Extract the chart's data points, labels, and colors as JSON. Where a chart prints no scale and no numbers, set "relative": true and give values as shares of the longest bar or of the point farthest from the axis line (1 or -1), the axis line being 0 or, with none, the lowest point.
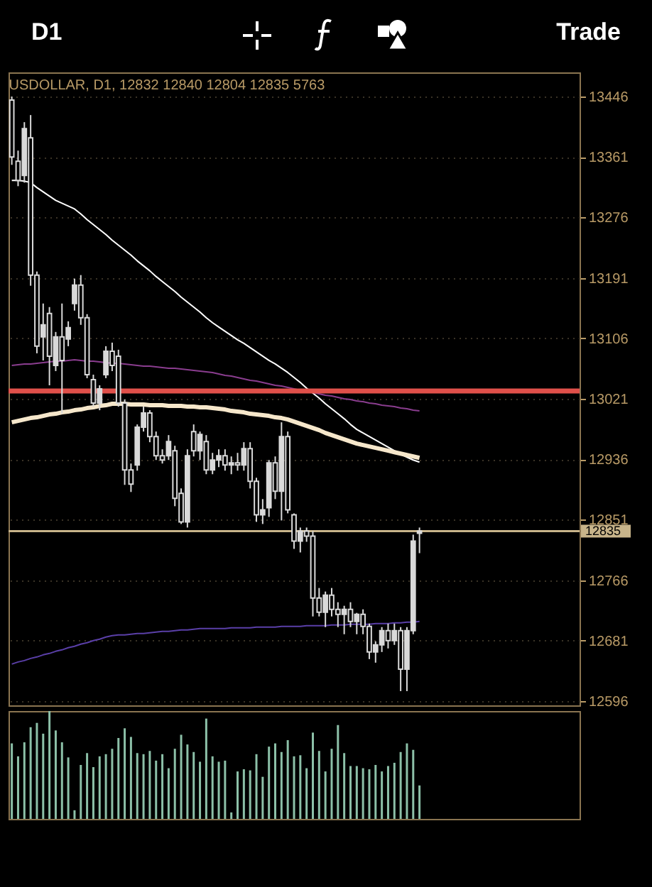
{
  "chart_data": [
    {
      "type": "candlestick",
      "title": "USDOLLAR, D1, 12832 12840 12804 12835 5763",
      "annotations": [
        "D1",
        "Trade"
      ],
      "categories": [
        null,
        null,
        null,
        null,
        null,
        null,
        null,
        null,
        null,
        null,
        null,
        null,
        null,
        null,
        null,
        null,
        null,
        null,
        null,
        null,
        null,
        null,
        null,
        null,
        null,
        null,
        null,
        null,
        null,
        null,
        null,
        null,
        null,
        null,
        null,
        null,
        null,
        null,
        null,
        null,
        null,
        null,
        null,
        null,
        null,
        null,
        null,
        null,
        null,
        null,
        null,
        null,
        null,
        null,
        null,
        null,
        null,
        null,
        null,
        null,
        null,
        null,
        null,
        null,
        null,
        null,
        null,
        null,
        null,
        null,
        null,
        null,
        null,
        null,
        null,
        null,
        null,
        null,
        null,
        null,
        null,
        null,
        null,
        null,
        null,
        null,
        null,
        null,
        null,
        null,
        null
      ],
      "ohlc": [
        [
          13441,
          13446,
          13350,
          13361
        ],
        [
          13355,
          13370,
          13320,
          13328
        ],
        [
          13335,
          13410,
          13325,
          13401
        ],
        [
          13388,
          13420,
          13180,
          13195
        ],
        [
          13195,
          13200,
          13085,
          13095
        ],
        [
          13108,
          13155,
          13075,
          13125
        ],
        [
          13141,
          13150,
          13040,
          13081
        ],
        [
          13068,
          13115,
          13060,
          13108
        ],
        [
          13108,
          13155,
          13000,
          13075
        ],
        [
          13105,
          13130,
          13095,
          13121
        ],
        [
          13155,
          13190,
          13145,
          13181
        ],
        [
          13181,
          13195,
          13125,
          13135
        ],
        [
          13135,
          13140,
          13050,
          13055
        ],
        [
          13048,
          13055,
          13010,
          13015
        ],
        [
          13015,
          13040,
          13005,
          13035
        ],
        [
          13055,
          13095,
          13050,
          13088
        ],
        [
          13088,
          13100,
          13060,
          13068
        ],
        [
          13081,
          13090,
          13010,
          13015
        ],
        [
          13015,
          13020,
          12900,
          12921
        ],
        [
          12921,
          12930,
          12890,
          12901
        ],
        [
          12928,
          12985,
          12920,
          12981
        ],
        [
          12981,
          13010,
          12975,
          13001
        ],
        [
          13001,
          13005,
          12960,
          12968
        ],
        [
          12968,
          12975,
          12935,
          12941
        ],
        [
          12941,
          12950,
          12930,
          12935
        ],
        [
          12941,
          12970,
          12935,
          12961
        ],
        [
          12948,
          12955,
          12870,
          12881
        ],
        [
          12888,
          12895,
          12845,
          12848
        ],
        [
          12848,
          12950,
          12840,
          12941
        ],
        [
          12975,
          12985,
          12940,
          12948
        ],
        [
          12948,
          12975,
          12935,
          12971
        ],
        [
          12961,
          12970,
          12915,
          12921
        ],
        [
          12921,
          12945,
          12915,
          12935
        ],
        [
          12935,
          12950,
          12925,
          12941
        ],
        [
          12941,
          12950,
          12920,
          12928
        ],
        [
          12928,
          12940,
          12915,
          12931
        ],
        [
          12931,
          12945,
          12920,
          12928
        ],
        [
          12928,
          12960,
          12920,
          12951
        ],
        [
          12951,
          12960,
          12895,
          12905
        ],
        [
          12905,
          12910,
          12848,
          12858
        ],
        [
          12858,
          12880,
          12845,
          12865
        ],
        [
          12868,
          12935,
          12855,
          12931
        ],
        [
          12931,
          12940,
          12880,
          12891
        ],
        [
          12891,
          12988,
          12850,
          12968
        ],
        [
          12968,
          12975,
          12860,
          12865
        ],
        [
          12858,
          12860,
          12810,
          12821
        ],
        [
          12821,
          12840,
          12805,
          12835
        ],
        [
          12835,
          12840,
          12820,
          12828
        ],
        [
          12828,
          12835,
          12715,
          12741
        ],
        [
          12741,
          12755,
          12715,
          12721
        ],
        [
          12721,
          12750,
          12700,
          12745
        ],
        [
          12745,
          12755,
          12715,
          12725
        ],
        [
          12725,
          12735,
          12700,
          12718
        ],
        [
          12718,
          12730,
          12690,
          12725
        ],
        [
          12725,
          12735,
          12700,
          12708
        ],
        [
          12708,
          12720,
          12690,
          12718
        ],
        [
          12718,
          12725,
          12690,
          12701
        ],
        [
          12701,
          12705,
          12655,
          12665
        ],
        [
          12665,
          12680,
          12650,
          12675
        ],
        [
          12675,
          12700,
          12665,
          12695
        ],
        [
          12695,
          12705,
          12670,
          12681
        ],
        [
          12681,
          12705,
          12675,
          12695
        ],
        [
          12695,
          12700,
          12610,
          12641
        ],
        [
          12641,
          12700,
          12610,
          12695
        ],
        [
          12695,
          12830,
          12690,
          12821
        ],
        [
          12832,
          12840,
          12804,
          12835
        ],
        null,
        null,
        null,
        null,
        null,
        null,
        null,
        null,
        null,
        null,
        null,
        null,
        null,
        null,
        null,
        null,
        null,
        null,
        null,
        null,
        null,
        null,
        null,
        null,
        null
      ],
      "color": "#d9d9d9",
      "series": [
        {
          "type": "line",
          "color": "#ffffff",
          "values": [
            13328,
            13328,
            13327,
            13325,
            13318,
            13312,
            13306,
            13300,
            13296,
            13292,
            13288,
            13281,
            13273,
            13266,
            13259,
            13252,
            13244,
            13237,
            13230,
            13223,
            13215,
            13208,
            13201,
            13193,
            13186,
            13179,
            13172,
            13164,
            13157,
            13150,
            13143,
            13135,
            13128,
            13122,
            13116,
            13110,
            13104,
            13099,
            13093,
            13087,
            13081,
            13075,
            13070,
            13064,
            13058,
            13051,
            13044,
            13036,
            13029,
            13022,
            13014,
            13007,
            13000,
            12993,
            12985,
            12978,
            12973,
            12968,
            12963,
            12958,
            12953,
            12948,
            12943,
            12939,
            12935,
            12932,
            null,
            null,
            null,
            null,
            null,
            null,
            null,
            null,
            null,
            null,
            null,
            null,
            null,
            null,
            null,
            null,
            null,
            null,
            null,
            null,
            null,
            null,
            null,
            null,
            null
          ]
        },
        {
          "type": "line",
          "color": "#f6e7cb",
          "values": [
            12988,
            12990,
            12992,
            12994,
            12995,
            12997,
            12999,
            13000,
            13002,
            13003,
            13005,
            13006,
            13008,
            13009,
            13011,
            13012,
            13014,
            13014,
            13014,
            13013,
            13013,
            13013,
            13012,
            13012,
            13012,
            13011,
            13011,
            13011,
            13010,
            13010,
            13009,
            13009,
            13008,
            13007,
            13006,
            13004,
            13003,
            13002,
            13000,
            12999,
            12998,
            12997,
            12995,
            12994,
            12992,
            12989,
            12986,
            12983,
            12980,
            12977,
            12973,
            12970,
            12967,
            12964,
            12961,
            12958,
            12956,
            12954,
            12952,
            12950,
            12948,
            12946,
            12944,
            12942,
            12940,
            12938,
            null,
            null,
            null,
            null,
            null,
            null,
            null,
            null,
            null,
            null,
            null,
            null,
            null,
            null,
            null,
            null,
            null,
            null,
            null,
            null,
            null,
            null,
            null,
            null,
            null
          ]
        },
        {
          "type": "line",
          "color": "#8a3d8f",
          "values": [
            13068,
            13069,
            13070,
            13070,
            13071,
            13072,
            13073,
            13074,
            13074,
            13075,
            13076,
            13075,
            13074,
            13074,
            13073,
            13072,
            13071,
            13071,
            13070,
            13069,
            13068,
            13067,
            13067,
            13066,
            13065,
            13064,
            13064,
            13063,
            13062,
            13061,
            13060,
            13059,
            13058,
            13056,
            13054,
            13053,
            13051,
            13049,
            13047,
            13046,
            13044,
            13042,
            13040,
            13039,
            13037,
            13035,
            13033,
            13032,
            13030,
            13028,
            13026,
            13025,
            13023,
            13021,
            13020,
            13018,
            13017,
            13015,
            13014,
            13012,
            13011,
            13010,
            13008,
            13007,
            13005,
            13004,
            null,
            null,
            null,
            null,
            null,
            null,
            null,
            null,
            null,
            null,
            null,
            null,
            null,
            null,
            null,
            null,
            null,
            null,
            null,
            null,
            null,
            null,
            null,
            null,
            null
          ]
        },
        {
          "type": "line",
          "color": "#5a3fa8",
          "values": [
            12648,
            12651,
            12653,
            12656,
            12658,
            12661,
            12663,
            12666,
            12668,
            12671,
            12673,
            12676,
            12678,
            12681,
            12683,
            12686,
            12688,
            12689,
            12689,
            12690,
            12691,
            12691,
            12692,
            12693,
            12694,
            12694,
            12695,
            12696,
            12696,
            12697,
            12698,
            12698,
            12698,
            12698,
            12698,
            12699,
            12699,
            12699,
            12699,
            12700,
            12700,
            12700,
            12700,
            12701,
            12701,
            12701,
            12701,
            12702,
            12702,
            12702,
            12702,
            12703,
            12703,
            12703,
            12704,
            12704,
            12704,
            12704,
            12705,
            12705,
            12705,
            12706,
            12706,
            12707,
            12707,
            12708,
            null,
            null,
            null,
            null,
            null,
            null,
            null,
            null,
            null,
            null,
            null,
            null,
            null,
            null,
            null,
            null,
            null,
            null,
            null,
            null,
            null,
            null,
            null,
            null,
            null
          ]
        }
      ],
      "ylim": [
        12590,
        13480
      ],
      "yticks": [
        12596,
        12681,
        12766,
        12851,
        12936,
        13021,
        13106,
        13191,
        13276,
        13361,
        13446
      ],
      "grid": "y",
      "ref_lines": [
        {
          "axis": "y",
          "value": 13032,
          "color": "#e0504a"
        },
        {
          "axis": "y",
          "value": 12835,
          "label": "12835",
          "color": "#c8b48a"
        }
      ]
    },
    {
      "type": "bar",
      "relative": true,
      "color": "#8cc0a8",
      "categories": [
        null,
        null,
        null,
        null,
        null,
        null,
        null,
        null,
        null,
        null,
        null,
        null,
        null,
        null,
        null,
        null,
        null,
        null,
        null,
        null,
        null,
        null,
        null,
        null,
        null,
        null,
        null,
        null,
        null,
        null,
        null,
        null,
        null,
        null,
        null,
        null,
        null,
        null,
        null,
        null,
        null,
        null,
        null,
        null,
        null,
        null,
        null,
        null,
        null,
        null,
        null,
        null,
        null,
        null,
        null,
        null,
        null,
        null,
        null,
        null,
        null,
        null,
        null,
        null,
        null,
        null,
        null,
        null,
        null,
        null,
        null,
        null,
        null,
        null,
        null,
        null,
        null,
        null,
        null,
        null,
        null,
        null,
        null,
        null,
        null,
        null,
        null,
        null,
        null,
        null,
        null
      ],
      "values": [
        0.7,
        0.58,
        0.71,
        0.85,
        0.89,
        0.79,
        1,
        0.82,
        0.71,
        0.57,
        0.08,
        0.5,
        0.61,
        0.48,
        0.58,
        0.6,
        0.65,
        0.75,
        0.84,
        0.76,
        0.61,
        0.6,
        0.63,
        0.54,
        0.6,
        0.47,
        0.65,
        0.78,
        0.69,
        0.62,
        0.53,
        0.93,
        0.58,
        0.53,
        0.54,
        0.06,
        0.44,
        0.46,
        0.45,
        0.6,
        0.39,
        0.67,
        0.7,
        0.62,
        0.73,
        0.58,
        0.59,
        0.47,
        0.8,
        0.63,
        0.44,
        0.65,
        0.87,
        0.61,
        0.49,
        0.49,
        0.47,
        0.46,
        0.5,
        0.44,
        0.49,
        0.52,
        0.62,
        0.7,
        0.64,
        0.31,
        null,
        null,
        null,
        null,
        null,
        null,
        null,
        null,
        null,
        null,
        null,
        null,
        null,
        null,
        null,
        null,
        null,
        null,
        null,
        null,
        null,
        null,
        null,
        null,
        null
      ]
    }
  ]
}
